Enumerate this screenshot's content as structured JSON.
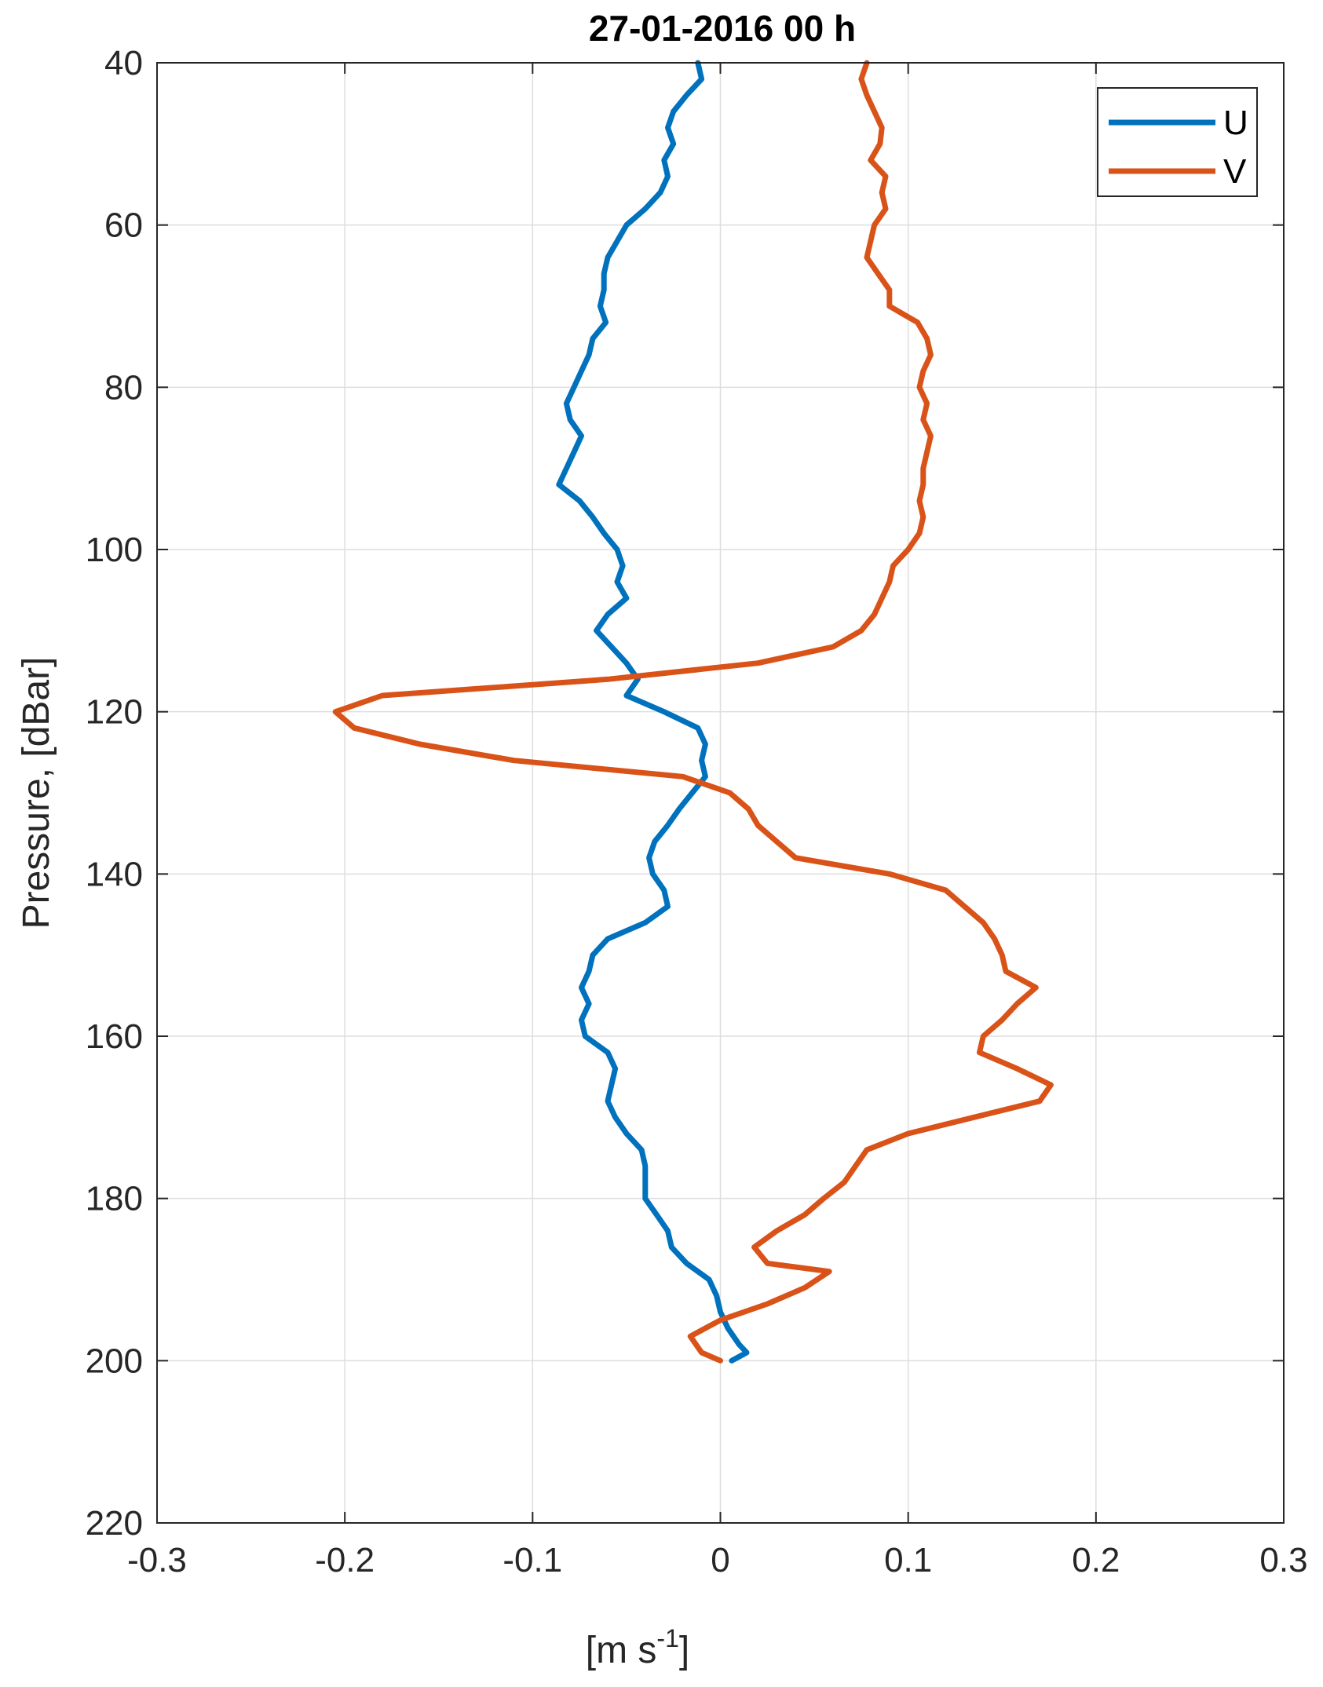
{
  "chart_data": {
    "type": "line",
    "title": "27-01-2016 00 h",
    "xlabel": "[m s",
    "xlabel_superscript": "-1",
    "xlabel_suffix": "]",
    "ylabel": "Pressure, [dBar]",
    "xlim": [
      -0.3,
      0.3
    ],
    "ylim": [
      40,
      220
    ],
    "y_reversed": true,
    "grid": true,
    "legend_position": "top-right",
    "x_ticks": [
      "-0.3",
      "-0.2",
      "-0.1",
      "0",
      "0.1",
      "0.2",
      "0.3"
    ],
    "y_ticks": [
      "40",
      "60",
      "80",
      "100",
      "120",
      "140",
      "160",
      "180",
      "200",
      "220"
    ],
    "series": [
      {
        "name": "U",
        "color": "#0072BD",
        "points": [
          [
            -0.012,
            40
          ],
          [
            -0.01,
            42
          ],
          [
            -0.018,
            44
          ],
          [
            -0.025,
            46
          ],
          [
            -0.028,
            48
          ],
          [
            -0.025,
            50
          ],
          [
            -0.03,
            52
          ],
          [
            -0.028,
            54
          ],
          [
            -0.032,
            56
          ],
          [
            -0.04,
            58
          ],
          [
            -0.05,
            60
          ],
          [
            -0.055,
            62
          ],
          [
            -0.06,
            64
          ],
          [
            -0.062,
            66
          ],
          [
            -0.062,
            68
          ],
          [
            -0.064,
            70
          ],
          [
            -0.061,
            72
          ],
          [
            -0.068,
            74
          ],
          [
            -0.07,
            76
          ],
          [
            -0.074,
            78
          ],
          [
            -0.078,
            80
          ],
          [
            -0.082,
            82
          ],
          [
            -0.08,
            84
          ],
          [
            -0.074,
            86
          ],
          [
            -0.078,
            88
          ],
          [
            -0.082,
            90
          ],
          [
            -0.086,
            92
          ],
          [
            -0.075,
            94
          ],
          [
            -0.068,
            96
          ],
          [
            -0.062,
            98
          ],
          [
            -0.055,
            100
          ],
          [
            -0.052,
            102
          ],
          [
            -0.055,
            104
          ],
          [
            -0.05,
            106
          ],
          [
            -0.06,
            108
          ],
          [
            -0.066,
            110
          ],
          [
            -0.058,
            112
          ],
          [
            -0.05,
            114
          ],
          [
            -0.044,
            116
          ],
          [
            -0.05,
            118
          ],
          [
            -0.03,
            120
          ],
          [
            -0.012,
            122
          ],
          [
            -0.008,
            124
          ],
          [
            -0.01,
            126
          ],
          [
            -0.008,
            128
          ],
          [
            -0.015,
            130
          ],
          [
            -0.022,
            132
          ],
          [
            -0.028,
            134
          ],
          [
            -0.035,
            136
          ],
          [
            -0.038,
            138
          ],
          [
            -0.036,
            140
          ],
          [
            -0.03,
            142
          ],
          [
            -0.028,
            144
          ],
          [
            -0.04,
            146
          ],
          [
            -0.06,
            148
          ],
          [
            -0.068,
            150
          ],
          [
            -0.07,
            152
          ],
          [
            -0.074,
            154
          ],
          [
            -0.07,
            156
          ],
          [
            -0.074,
            158
          ],
          [
            -0.072,
            160
          ],
          [
            -0.06,
            162
          ],
          [
            -0.056,
            164
          ],
          [
            -0.058,
            166
          ],
          [
            -0.06,
            168
          ],
          [
            -0.056,
            170
          ],
          [
            -0.05,
            172
          ],
          [
            -0.042,
            174
          ],
          [
            -0.04,
            176
          ],
          [
            -0.04,
            178
          ],
          [
            -0.04,
            180
          ],
          [
            -0.034,
            182
          ],
          [
            -0.028,
            184
          ],
          [
            -0.026,
            186
          ],
          [
            -0.018,
            188
          ],
          [
            -0.006,
            190
          ],
          [
            -0.002,
            192
          ],
          [
            0.0,
            194
          ],
          [
            0.004,
            196
          ],
          [
            0.01,
            198
          ],
          [
            0.014,
            199
          ],
          [
            0.006,
            200
          ]
        ]
      },
      {
        "name": "V",
        "color": "#D95319",
        "points": [
          [
            0.078,
            40
          ],
          [
            0.075,
            42
          ],
          [
            0.078,
            44
          ],
          [
            0.082,
            46
          ],
          [
            0.086,
            48
          ],
          [
            0.085,
            50
          ],
          [
            0.08,
            52
          ],
          [
            0.088,
            54
          ],
          [
            0.086,
            56
          ],
          [
            0.088,
            58
          ],
          [
            0.082,
            60
          ],
          [
            0.08,
            62
          ],
          [
            0.078,
            64
          ],
          [
            0.084,
            66
          ],
          [
            0.09,
            68
          ],
          [
            0.09,
            70
          ],
          [
            0.105,
            72
          ],
          [
            0.11,
            74
          ],
          [
            0.112,
            76
          ],
          [
            0.108,
            78
          ],
          [
            0.106,
            80
          ],
          [
            0.11,
            82
          ],
          [
            0.108,
            84
          ],
          [
            0.112,
            86
          ],
          [
            0.11,
            88
          ],
          [
            0.108,
            90
          ],
          [
            0.108,
            92
          ],
          [
            0.106,
            94
          ],
          [
            0.108,
            96
          ],
          [
            0.106,
            98
          ],
          [
            0.1,
            100
          ],
          [
            0.092,
            102
          ],
          [
            0.09,
            104
          ],
          [
            0.086,
            106
          ],
          [
            0.082,
            108
          ],
          [
            0.075,
            110
          ],
          [
            0.06,
            112
          ],
          [
            0.02,
            114
          ],
          [
            -0.06,
            116
          ],
          [
            -0.18,
            118
          ],
          [
            -0.205,
            120
          ],
          [
            -0.195,
            122
          ],
          [
            -0.16,
            124
          ],
          [
            -0.11,
            126
          ],
          [
            -0.02,
            128
          ],
          [
            0.005,
            130
          ],
          [
            0.015,
            132
          ],
          [
            0.02,
            134
          ],
          [
            0.03,
            136
          ],
          [
            0.04,
            138
          ],
          [
            0.09,
            140
          ],
          [
            0.12,
            142
          ],
          [
            0.13,
            144
          ],
          [
            0.14,
            146
          ],
          [
            0.146,
            148
          ],
          [
            0.15,
            150
          ],
          [
            0.152,
            152
          ],
          [
            0.168,
            154
          ],
          [
            0.158,
            156
          ],
          [
            0.15,
            158
          ],
          [
            0.14,
            160
          ],
          [
            0.138,
            162
          ],
          [
            0.158,
            164
          ],
          [
            0.176,
            166
          ],
          [
            0.17,
            168
          ],
          [
            0.135,
            170
          ],
          [
            0.1,
            172
          ],
          [
            0.078,
            174
          ],
          [
            0.072,
            176
          ],
          [
            0.066,
            178
          ],
          [
            0.055,
            180
          ],
          [
            0.045,
            182
          ],
          [
            0.03,
            184
          ],
          [
            0.018,
            186
          ],
          [
            0.025,
            188
          ],
          [
            0.058,
            189
          ],
          [
            0.045,
            191
          ],
          [
            0.025,
            193
          ],
          [
            0.0,
            195
          ],
          [
            -0.016,
            197
          ],
          [
            -0.01,
            199
          ],
          [
            0.0,
            200
          ]
        ]
      }
    ]
  }
}
